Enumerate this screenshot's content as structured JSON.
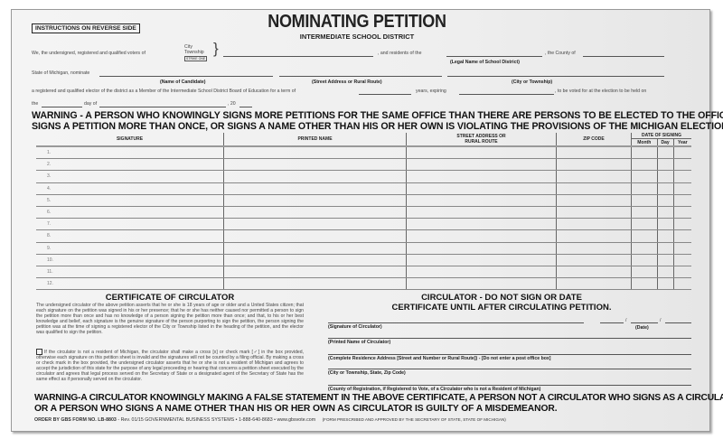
{
  "header": {
    "instructions": "INSTRUCTIONS ON REVERSE SIDE",
    "title": "NOMINATING PETITION",
    "subtitle": "INTERMEDIATE SCHOOL DISTRICT"
  },
  "preamble": {
    "we_text": "We, the undersigned, registered and qualified voters of",
    "city": "City",
    "township": "Township",
    "strike_one": "STRIKE ONE",
    "residents_text": ", and residents of the",
    "legal_name_label": "(Legal Name of School District)",
    "county_text": ", the County of",
    "state_text": "State of Michigan, nominate",
    "candidate_label": "(Name of Candidate)",
    "street_label": "(Street Address or Rural Route)",
    "city_label": "(City or Township)",
    "elector_text": "a registered and qualified elector of the district as a Member of the Intermediate School District Board of Education for a term of",
    "years_text": "years, expiring",
    "voted_text": ", to be voted for at the election to be held on",
    "the_text": "the",
    "day_of_text": "day of",
    "year_text": ", 20"
  },
  "warning1": [
    "WARNING - A PERSON WHO KNOWINGLY SIGNS MORE PETITIONS FOR THE SAME OFFICE THAN THERE ARE PERSONS TO BE ELECTED TO THE OFFICE,",
    "SIGNS A PETITION MORE THAN ONCE, OR SIGNS A NAME OTHER THAN HIS OR HER OWN IS VIOLATING THE PROVISIONS OF THE MICHIGAN ELECTION LAW."
  ],
  "table": {
    "columns": [
      "SIGNATURE",
      "PRINTED NAME",
      "STREET ADDRESS OR RURAL ROUTE",
      "ZIP CODE",
      "DATE OF SIGNING"
    ],
    "date_sub": [
      "Month",
      "Day",
      "Year"
    ],
    "rows": [
      "1.",
      "2.",
      "3.",
      "4.",
      "5.",
      "6.",
      "7.",
      "8.",
      "9.",
      "10.",
      "11.",
      "12."
    ]
  },
  "certificate": {
    "title": "CERTIFICATE OF CIRCULATOR",
    "paragraph": "The undersigned circulator of the above petition asserts that he or she is 18 years of age or older and a United States citizen; that each signature on the petition was signed in his or her presence; that he or she has neither caused nor permitted a person to sign the petition more than once and has no knowledge of a person signing the petition more than once; and that, to his or her best knowledge and belief, each signature is the genuine signature of the person purporting to sign the petition, the person signing the petition was at the time of signing a registered elector of the City or Township listed in the heading of the petition, and the elector was qualified to sign the petition.",
    "nonresident": "If the circulator is not a resident of Michigan, the circulator shall make a cross [x] or check mark [✓] in the box provided, otherwise each signature on this petition sheet is invalid and the signatures will not be counted by a filing official. By making a cross or check mark in the box provided, the undersigned circulator asserts that he or she is not a resident of Michigan and agrees to accept the jurisdiction of this state for the purpose of any legal proceeding or hearing that concerns a petition sheet executed by the circulator and agrees that legal process served on the Secretary of State or a designated agent of the Secretary of State has the same effect as if personally served on the circulator.",
    "notice": [
      "CIRCULATOR - DO NOT SIGN OR DATE",
      "CERTIFICATE UNTIL AFTER CIRCULATING PETITION."
    ],
    "fields": [
      "(Signature of Circulator)",
      "(Printed Name of Circulator)",
      "(Complete Residence Address [Street and Number or Rural Route]) - [Do not enter a post office box]",
      "(City or Township, State, Zip Code)",
      "(County of Registration, if Registered to Vote, of a Circulator who is not a Resident of Michigan)"
    ],
    "date_label": "(Date)"
  },
  "warning2": [
    "WARNING-A CIRCULATOR KNOWINGLY MAKING A FALSE STATEMENT IN THE ABOVE CERTIFICATE, A PERSON NOT A CIRCULATOR WHO SIGNS AS A CIRCULATOR,",
    "OR A PERSON WHO SIGNS A NAME OTHER THAN HIS OR HER OWN AS CIRCULATOR IS GUILTY OF A MISDEMEANOR."
  ],
  "footer": {
    "order": "ORDER BY GBS FORM NO. LB-8803",
    "rest": " - Rev. 01/15   GOVERNMENTAL BUSINESS SYSTEMS • 1-888-640-8683 • www.gbsvote.com",
    "approved": "(FORM PRESCRIBED AND APPROVED BY THE SECRETARY OF STATE, STATE OF MICHIGAN)"
  }
}
